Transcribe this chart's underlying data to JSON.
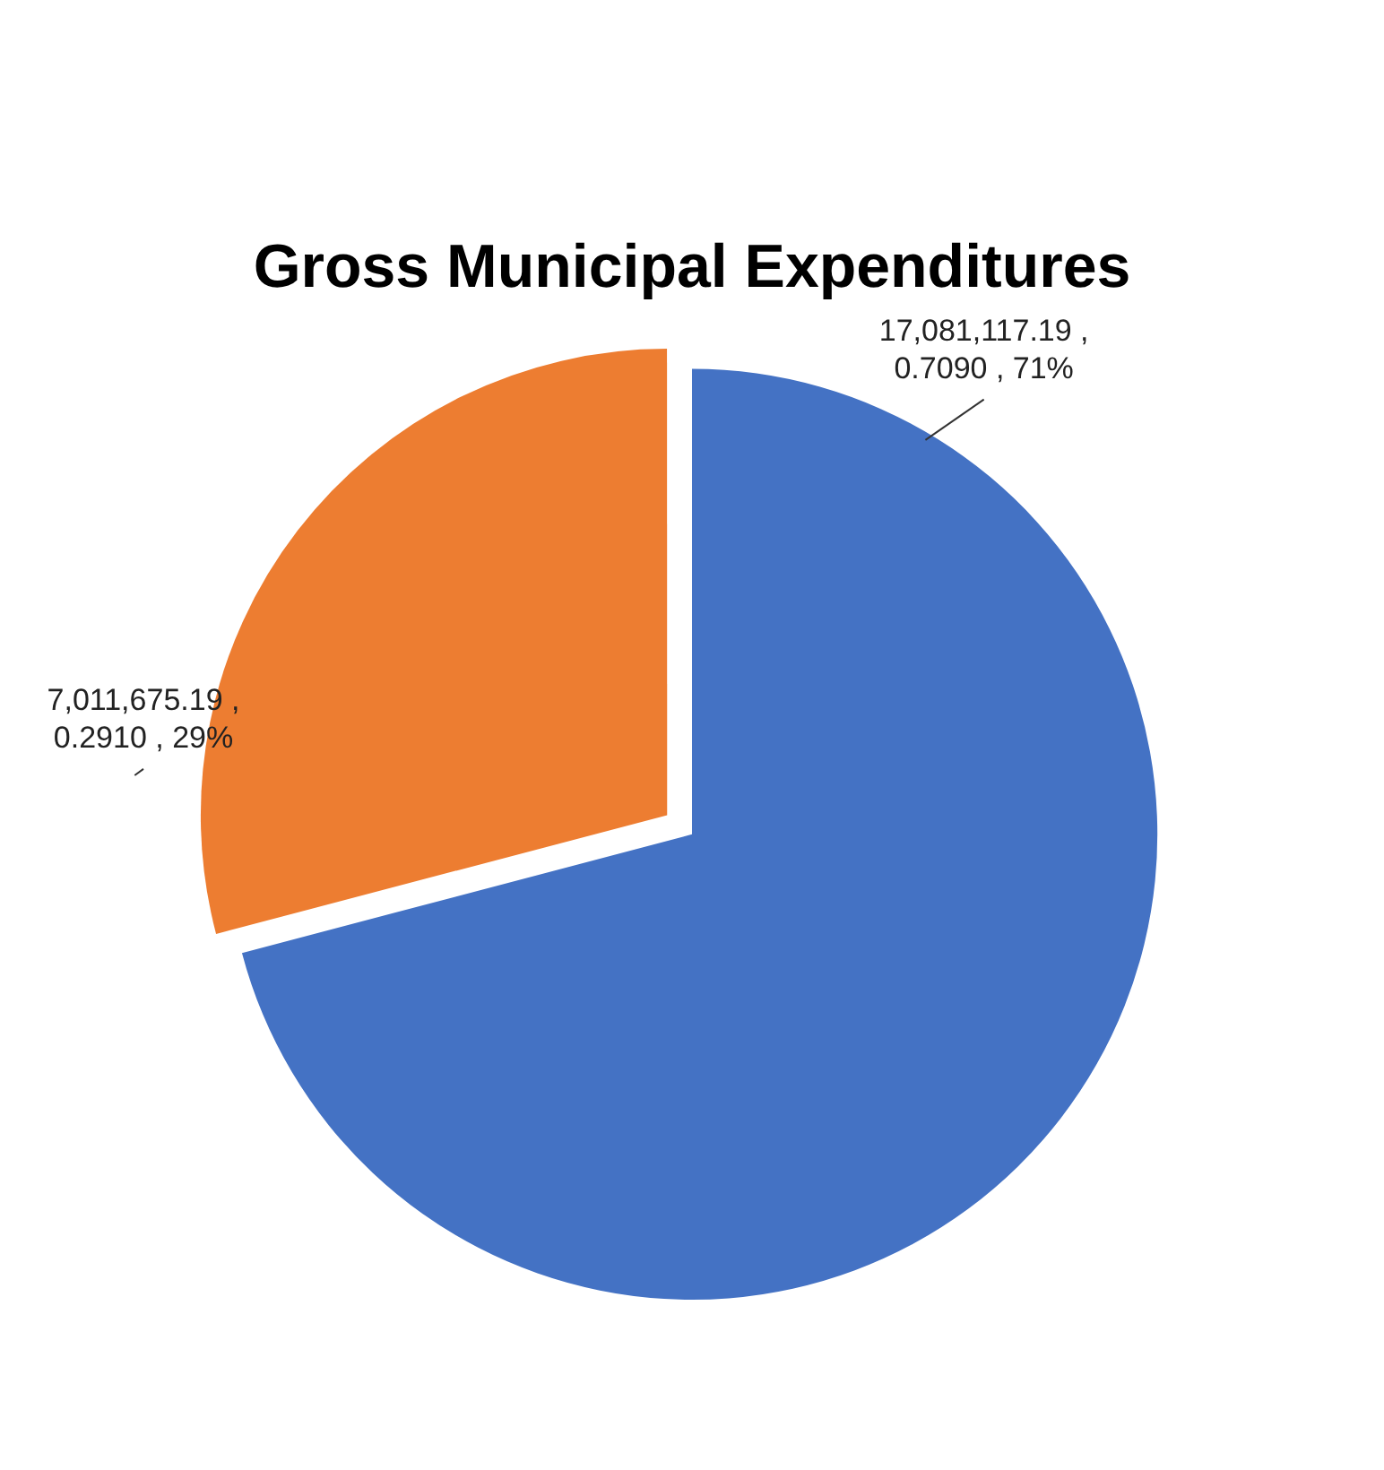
{
  "chart_data": {
    "type": "pie",
    "title": "Gross Municipal Expenditures",
    "categories": [
      null,
      null
    ],
    "values": [
      17081117.19,
      7011675.19
    ],
    "colors": [
      "#4472c4",
      "#ed7d31"
    ],
    "value_labels": [
      "17,081,117.19 , 0.7090 , 71%",
      "7,011,675.19 , 0.2910 , 29%"
    ],
    "legend": false
  }
}
